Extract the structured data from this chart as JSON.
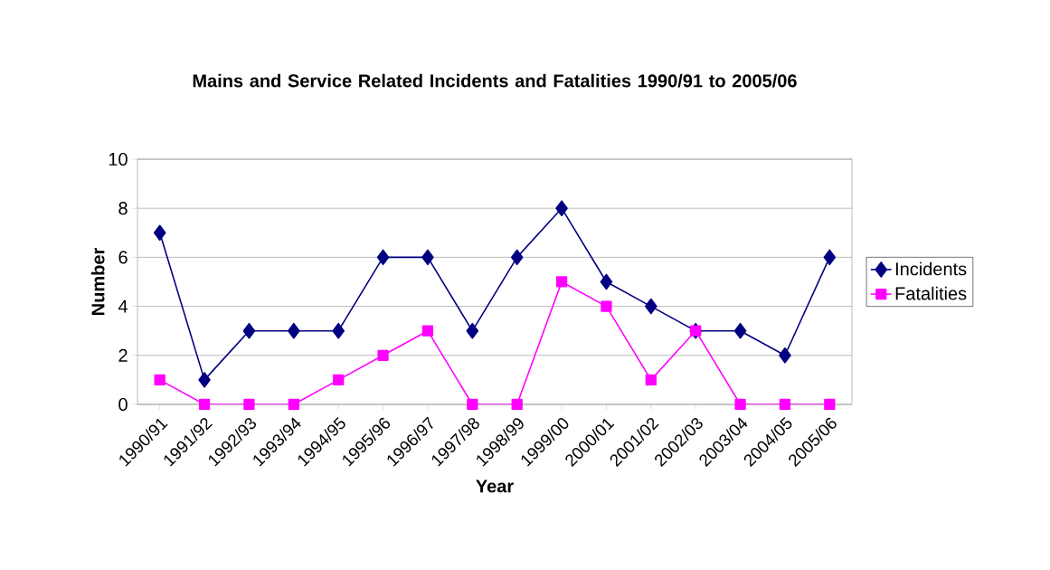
{
  "chart_data": {
    "type": "line",
    "title": "Mains and Service Related Incidents and Fatalities 1990/91 to 2005/06",
    "xlabel": "Year",
    "ylabel": "Number",
    "categories": [
      "1990/91",
      "1991/92",
      "1992/93",
      "1993/94",
      "1994/95",
      "1995/96",
      "1996/97",
      "1997/98",
      "1998/99",
      "1999/00",
      "2000/01",
      "2001/02",
      "2002/03",
      "2003/04",
      "2004/05",
      "2005/06"
    ],
    "series": [
      {
        "name": "Incidents",
        "color": "#000080",
        "marker": "diamond",
        "values": [
          7,
          1,
          3,
          3,
          3,
          6,
          6,
          3,
          6,
          8,
          5,
          4,
          3,
          3,
          2,
          6
        ]
      },
      {
        "name": "Fatalities",
        "color": "#ff00ff",
        "marker": "square",
        "values": [
          1,
          0,
          0,
          0,
          1,
          2,
          3,
          0,
          0,
          5,
          4,
          1,
          3,
          0,
          0,
          0
        ]
      }
    ],
    "ylim": [
      0,
      10
    ],
    "yticks": [
      0,
      2,
      4,
      6,
      8,
      10
    ],
    "grid": "y",
    "legend": "right",
    "line_style": "solid"
  }
}
